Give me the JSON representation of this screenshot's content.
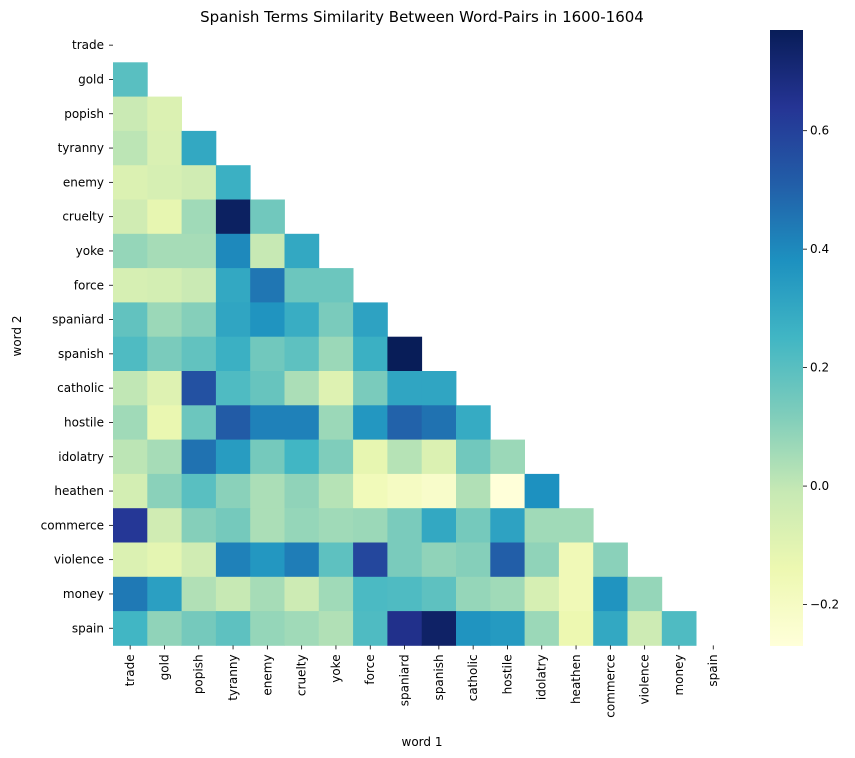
{
  "chart_data": {
    "type": "heatmap",
    "title": "Spanish Terms Similarity Between Word-Pairs in 1600-1604",
    "xlabel": "word 1",
    "ylabel": "word 2",
    "labels": [
      "trade",
      "gold",
      "popish",
      "tyranny",
      "enemy",
      "cruelty",
      "yoke",
      "force",
      "spaniard",
      "spanish",
      "catholic",
      "hostile",
      "idolatry",
      "heathen",
      "commerce",
      "violence",
      "money",
      "spain"
    ],
    "colorbar": {
      "min": -0.27,
      "max": 0.77,
      "ticks": [
        -0.2,
        0,
        0.2,
        0.4,
        0.6
      ],
      "tick_labels": [
        "−0.2",
        "0.0",
        "0.2",
        "0.4",
        "0.6"
      ],
      "colormap": "YlGnBu"
    },
    "values": [
      [],
      [
        0.2
      ],
      [
        -0.02,
        -0.08
      ],
      [
        0.01,
        -0.07,
        0.3
      ],
      [
        -0.08,
        -0.06,
        -0.04,
        0.27
      ],
      [
        -0.04,
        -0.12,
        0.06,
        0.75,
        0.15
      ],
      [
        0.08,
        0.05,
        0.05,
        0.4,
        -0.01,
        0.3
      ],
      [
        -0.06,
        -0.05,
        -0.02,
        0.3,
        0.45,
        0.16,
        0.16
      ],
      [
        0.18,
        0.07,
        0.11,
        0.31,
        0.37,
        0.28,
        0.13,
        0.32
      ],
      [
        0.22,
        0.13,
        0.18,
        0.27,
        0.15,
        0.19,
        0.07,
        0.27,
        0.77
      ],
      [
        0.0,
        -0.09,
        0.55,
        0.22,
        0.17,
        0.04,
        -0.09,
        0.13,
        0.31,
        0.31
      ],
      [
        0.06,
        -0.13,
        0.16,
        0.52,
        0.42,
        0.42,
        0.07,
        0.36,
        0.5,
        0.46,
        0.29
      ],
      [
        0.01,
        0.05,
        0.46,
        0.34,
        0.14,
        0.25,
        0.12,
        -0.12,
        0.02,
        -0.08,
        0.15,
        0.07
      ],
      [
        -0.05,
        0.1,
        0.2,
        0.1,
        0.04,
        0.09,
        0.02,
        -0.17,
        -0.2,
        -0.22,
        0.03,
        -0.27,
        0.38
      ],
      [
        0.63,
        -0.04,
        0.11,
        0.14,
        0.04,
        0.08,
        0.06,
        0.07,
        0.13,
        0.3,
        0.14,
        0.32,
        0.06,
        0.06
      ],
      [
        -0.08,
        -0.11,
        -0.04,
        0.42,
        0.36,
        0.43,
        0.19,
        0.58,
        0.13,
        0.09,
        0.11,
        0.51,
        0.09,
        -0.16,
        0.1
      ],
      [
        0.44,
        0.33,
        0.03,
        -0.01,
        0.05,
        -0.03,
        0.06,
        0.23,
        0.22,
        0.19,
        0.08,
        0.06,
        -0.06,
        -0.16,
        0.37,
        0.08
      ],
      [
        0.25,
        0.09,
        0.14,
        0.19,
        0.08,
        0.06,
        0.03,
        0.22,
        0.66,
        0.74,
        0.37,
        0.35,
        0.07,
        -0.14,
        0.3,
        -0.03,
        0.22
      ]
    ]
  }
}
